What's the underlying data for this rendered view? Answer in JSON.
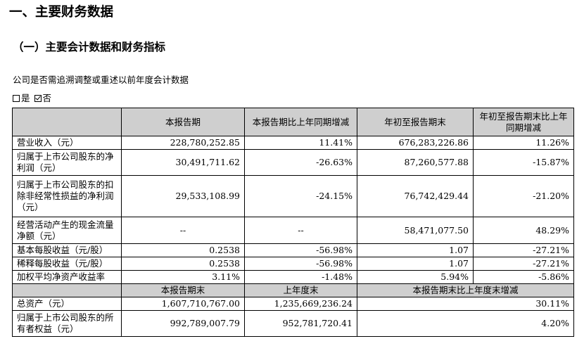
{
  "heading1": "一、主要财务数据",
  "heading2": "（一）主要会计数据和财务指标",
  "intro": "公司是否需追溯调整或重述以前年度会计数据",
  "choice": {
    "yes": "是",
    "no": "否"
  },
  "table": {
    "header1": [
      "本报告期",
      "本报告期比上年同期增减",
      "年初至报告期末",
      "年初至报告期末比上年同期增减"
    ],
    "rows": [
      {
        "label": "营业收入（元）",
        "v": [
          "228,780,252.85",
          "11.41%",
          "676,283,226.86",
          "11.26%"
        ]
      },
      {
        "label": "归属于上市公司股东的净利润（元）",
        "v": [
          "30,491,711.62",
          "-26.63%",
          "87,260,577.88",
          "-15.87%"
        ]
      },
      {
        "label": "归属于上市公司股东的扣除非经常性损益的净利润（元）",
        "v": [
          "29,533,108.99",
          "-24.15%",
          "76,742,429.44",
          "-21.20%"
        ]
      },
      {
        "label": "经营活动产生的现金流量净额（元）",
        "v": [
          "--",
          "--",
          "58,471,077.50",
          "48.29%"
        ]
      },
      {
        "label": "基本每股收益（元/股）",
        "v": [
          "0.2538",
          "-56.98%",
          "1.07",
          "-27.21%"
        ]
      },
      {
        "label": "稀释每股收益（元/股）",
        "v": [
          "0.2538",
          "-56.98%",
          "1.07",
          "-27.21%"
        ]
      },
      {
        "label": "加权平均净资产收益率",
        "v": [
          "3.11%",
          "-1.48%",
          "5.94%",
          "-5.86%"
        ]
      }
    ],
    "header2": [
      "本报告期末",
      "上年度末",
      "本报告期末比上年度末增减"
    ],
    "rows2": [
      {
        "label": "总资产（元）",
        "v": [
          "1,607,710,767.00",
          "1,235,669,236.24",
          "30.11%"
        ]
      },
      {
        "label": "归属于上市公司股东的所有者权益（元）",
        "v": [
          "992,789,007.79",
          "952,781,720.41",
          "4.20%"
        ]
      }
    ]
  }
}
